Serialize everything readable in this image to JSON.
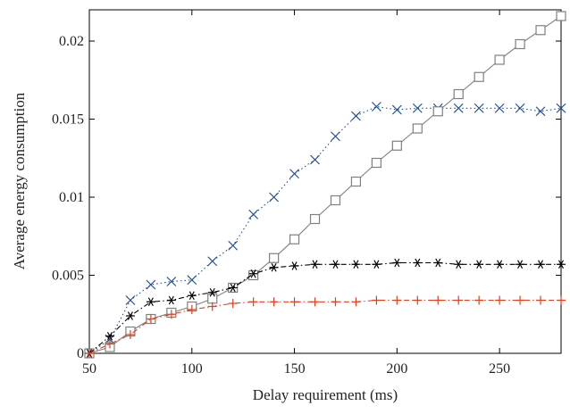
{
  "chart_data": {
    "type": "line",
    "title": "",
    "xlabel": "Delay requirement (ms)",
    "ylabel": "Average energy consumption",
    "xlim": [
      50,
      280
    ],
    "ylim": [
      0,
      0.022
    ],
    "xticks": [
      50,
      100,
      150,
      200,
      250
    ],
    "yticks": [
      0,
      0.005,
      0.01,
      0.015,
      0.02
    ],
    "ytick_labels": [
      "0",
      "0.005",
      "0.01",
      "0.015",
      "0.02"
    ],
    "grid": false,
    "legend": "none",
    "series": [
      {
        "marker": "x",
        "color": "#1f4e9c",
        "linestyle": "dotted",
        "x": [
          50,
          60,
          70,
          80,
          90,
          100,
          110,
          120,
          130,
          140,
          150,
          160,
          170,
          180,
          190,
          200,
          210,
          220,
          230,
          240,
          250,
          260,
          270,
          280
        ],
        "values": [
          0,
          0.0009,
          0.0034,
          0.0044,
          0.0046,
          0.0047,
          0.0059,
          0.0069,
          0.0089,
          0.01,
          0.0115,
          0.0124,
          0.0139,
          0.0152,
          0.0158,
          0.0156,
          0.0157,
          0.0157,
          0.0157,
          0.0157,
          0.0157,
          0.0157,
          0.0155,
          0.0157
        ]
      },
      {
        "marker": "square",
        "color": "#808080",
        "linestyle": "solid",
        "x": [
          50,
          60,
          70,
          80,
          90,
          100,
          110,
          120,
          130,
          140,
          150,
          160,
          170,
          180,
          190,
          200,
          210,
          220,
          230,
          240,
          250,
          260,
          270,
          280
        ],
        "values": [
          0,
          0.0004,
          0.0014,
          0.0022,
          0.0026,
          0.003,
          0.0035,
          0.0042,
          0.005,
          0.0061,
          0.0073,
          0.0086,
          0.0098,
          0.011,
          0.0122,
          0.0133,
          0.0144,
          0.0155,
          0.0166,
          0.0177,
          0.0188,
          0.0198,
          0.0207,
          0.0216
        ]
      },
      {
        "marker": "asterisk",
        "color": "#000000",
        "linestyle": "dashdot",
        "x": [
          50,
          60,
          70,
          80,
          90,
          100,
          110,
          120,
          130,
          140,
          150,
          160,
          170,
          180,
          190,
          200,
          210,
          220,
          230,
          240,
          250,
          260,
          270,
          280
        ],
        "values": [
          0,
          0.0011,
          0.0024,
          0.0033,
          0.0034,
          0.0037,
          0.0039,
          0.0042,
          0.0051,
          0.0055,
          0.0056,
          0.0057,
          0.0057,
          0.0057,
          0.0057,
          0.0058,
          0.0058,
          0.0058,
          0.0057,
          0.0057,
          0.0057,
          0.0057,
          0.0057,
          0.0057
        ]
      },
      {
        "marker": "plus",
        "color": "#e0401c",
        "linestyle": "dashdot",
        "x": [
          50,
          60,
          70,
          80,
          90,
          100,
          110,
          120,
          130,
          140,
          150,
          160,
          170,
          180,
          190,
          200,
          210,
          220,
          230,
          240,
          250,
          260,
          270,
          280
        ],
        "values": [
          0,
          0.0006,
          0.0012,
          0.0022,
          0.0025,
          0.0028,
          0.003,
          0.0032,
          0.0033,
          0.0033,
          0.0033,
          0.0033,
          0.0033,
          0.0033,
          0.0034,
          0.0034,
          0.0034,
          0.0034,
          0.0034,
          0.0034,
          0.0034,
          0.0034,
          0.0034,
          0.0034
        ]
      }
    ]
  }
}
